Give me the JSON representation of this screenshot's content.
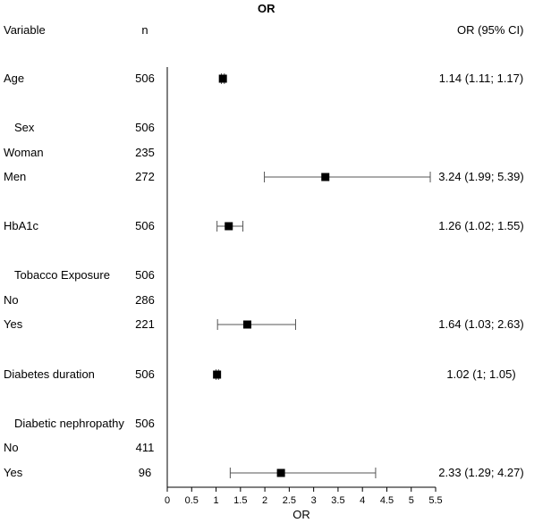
{
  "chart_data": {
    "type": "forest",
    "title": "OR",
    "headers": {
      "variable": "Variable",
      "n": "n",
      "or_ci": "OR (95% CI)"
    },
    "xlabel": "OR",
    "xlim": [
      0,
      5.5
    ],
    "xticks": [
      "0",
      "0.5",
      "1",
      "1.5",
      "2",
      "2.5",
      "3",
      "3.5",
      "4",
      "4.5",
      "5",
      "5.5"
    ],
    "rows": [
      {
        "label": "Age",
        "n": "506",
        "or": 1.14,
        "lo": 1.11,
        "hi": 1.17,
        "or_text": "1.14 (1.11; 1.17)",
        "indent": false
      },
      {
        "label": "Sex",
        "n": "506",
        "or": null,
        "lo": null,
        "hi": null,
        "or_text": "",
        "indent": true
      },
      {
        "label": "Woman",
        "n": "235",
        "or": null,
        "lo": null,
        "hi": null,
        "or_text": "",
        "indent": false
      },
      {
        "label": "Men",
        "n": "272",
        "or": 3.24,
        "lo": 1.99,
        "hi": 5.39,
        "or_text": "3.24 (1.99; 5.39)",
        "indent": false
      },
      {
        "label": "HbA1c",
        "n": "506",
        "or": 1.26,
        "lo": 1.02,
        "hi": 1.55,
        "or_text": "1.26 (1.02; 1.55)",
        "indent": false
      },
      {
        "label": "Tobacco Exposure",
        "n": "506",
        "or": null,
        "lo": null,
        "hi": null,
        "or_text": "",
        "indent": true
      },
      {
        "label": "No",
        "n": "286",
        "or": null,
        "lo": null,
        "hi": null,
        "or_text": "",
        "indent": false
      },
      {
        "label": "Yes",
        "n": "221",
        "or": 1.64,
        "lo": 1.03,
        "hi": 2.63,
        "or_text": "1.64 (1.03; 2.63)",
        "indent": false
      },
      {
        "label": "Diabetes duration",
        "n": "506",
        "or": 1.02,
        "lo": 1.0,
        "hi": 1.05,
        "or_text": "1.02 (1; 1.05)",
        "indent": false
      },
      {
        "label": "Diabetic nephropathy",
        "n": "506",
        "or": null,
        "lo": null,
        "hi": null,
        "or_text": "",
        "indent": true
      },
      {
        "label": "No",
        "n": "411",
        "or": null,
        "lo": null,
        "hi": null,
        "or_text": "",
        "indent": false
      },
      {
        "label": "Yes",
        "n": "96",
        "or": 2.33,
        "lo": 1.29,
        "hi": 4.27,
        "or_text": "2.33 (1.29; 4.27)",
        "indent": false
      }
    ]
  }
}
